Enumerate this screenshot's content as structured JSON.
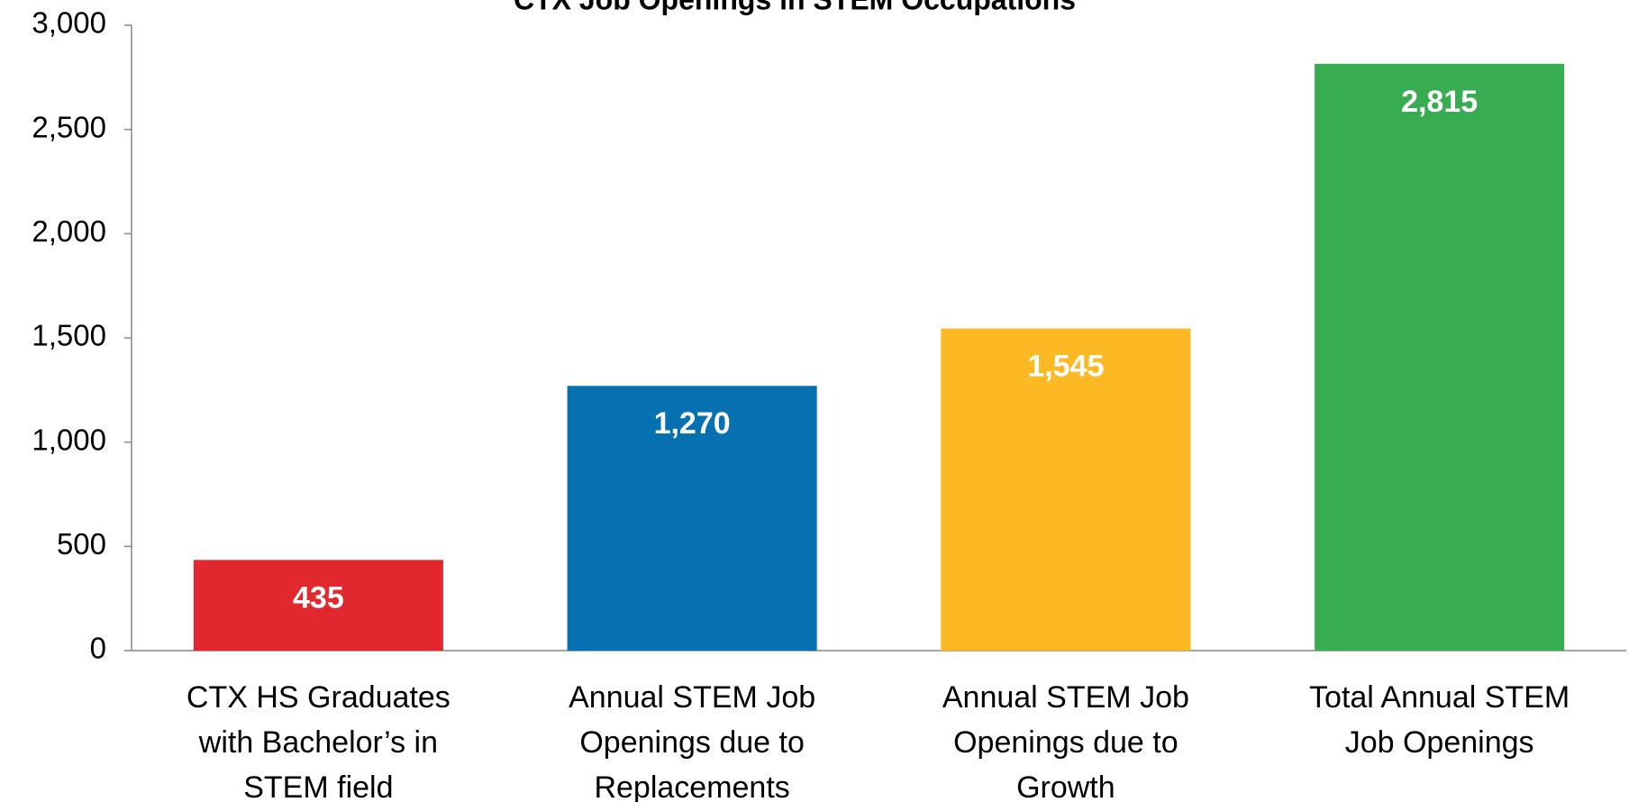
{
  "chart_data": {
    "type": "bar",
    "title": "CTX Job Openings in STEM Occupations",
    "categories": [
      "CTX HS Graduates\nwith Bachelor’s in\nSTEM field",
      "Annual STEM Job\nOpenings due to\nReplacements",
      "Annual STEM Job\nOpenings due to\nGrowth",
      "Total Annual STEM\nJob Openings"
    ],
    "values": [
      435,
      1270,
      1545,
      2815
    ],
    "value_labels": [
      "435",
      "1,270",
      "1,545",
      "2,815"
    ],
    "colors": [
      "#e1282e",
      "#0770b1",
      "#fdb923",
      "#37ac50"
    ],
    "ylim": [
      0,
      3000
    ],
    "yticks": [
      0,
      500,
      {
        "value": 1000,
        "label": "1,000"
      },
      {
        "value": 1500,
        "label": "1,500"
      },
      {
        "value": 2000,
        "label": "2,000"
      },
      {
        "value": 2500,
        "label": "2,500"
      },
      {
        "value": 3000,
        "label": "3,000"
      }
    ],
    "grid": false
  }
}
